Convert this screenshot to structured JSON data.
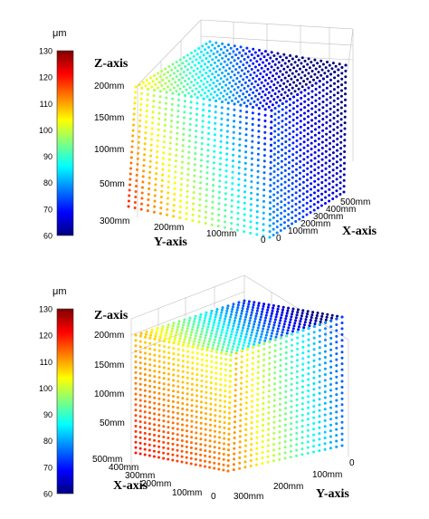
{
  "colorbar": {
    "unit": "μm",
    "ticks": [
      130,
      120,
      110,
      100,
      90,
      80,
      70,
      60
    ],
    "range": [
      60,
      130
    ],
    "colormap": [
      "#00007f",
      "#0000ff",
      "#007fff",
      "#00ffff",
      "#7fff7f",
      "#ffff00",
      "#ff7f00",
      "#ff0000",
      "#7f0000"
    ]
  },
  "chart_data": [
    {
      "type": "scatter3d",
      "panel": "top",
      "axes": {
        "z": {
          "label": "Z-axis",
          "ticks": [
            "200mm",
            "150mm",
            "100mm",
            "50mm"
          ]
        },
        "y": {
          "label": "Y-axis",
          "ticks": [
            "300mm",
            "200mm",
            "100mm",
            "0"
          ]
        },
        "x": {
          "label": "X-axis",
          "ticks": [
            "0",
            "100mm",
            "200mm",
            "300mm",
            "400mm",
            "500mm"
          ]
        }
      },
      "grid": true,
      "view": "front face X-Z spans from Y=300mm (left) to Y=0 (right); X increases into the depth"
    },
    {
      "type": "scatter3d",
      "panel": "bottom",
      "axes": {
        "z": {
          "label": "Z-axis",
          "ticks": [
            "200mm",
            "150mm",
            "100mm",
            "50mm"
          ]
        },
        "x": {
          "label": "X-axis",
          "ticks": [
            "500mm",
            "400mm",
            "300mm",
            "200mm",
            "100mm",
            "0"
          ]
        },
        "y": {
          "label": "Y-axis",
          "ticks": [
            "0",
            "100mm",
            "200mm",
            "300mm"
          ]
        }
      },
      "grid": true,
      "view": "left face spans X from 500mm to 0 along depth; right face spans Y from 0 to 300mm"
    }
  ]
}
